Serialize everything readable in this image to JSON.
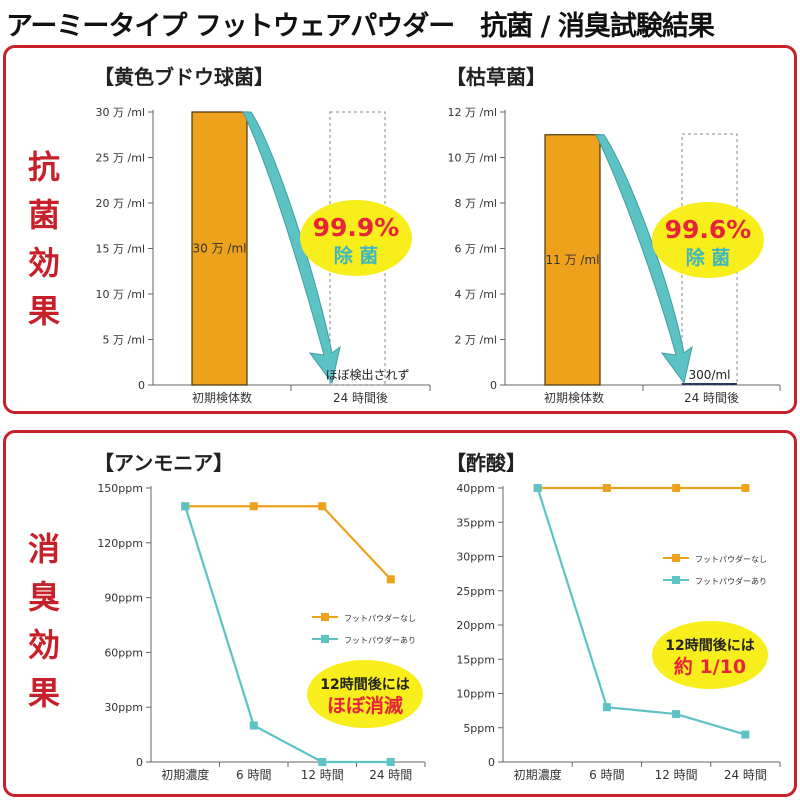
{
  "title": "アーミータイプ フットウェアパウダー　抗菌 / 消臭試験結果",
  "panels": {
    "antibacterial_side": [
      "抗",
      "菌",
      "効",
      "果"
    ],
    "deodorant_side": [
      "消",
      "臭",
      "効",
      "果"
    ]
  },
  "colors": {
    "orange": "#eea21c",
    "teal": "#5cc2c4",
    "red": "#c8202a",
    "callout_fill": "#f7ee1b",
    "callout_red": "#e8243a",
    "callout_teal": "#3fb7c0"
  },
  "chart_data": [
    {
      "type": "bar",
      "title": "【黄色ブドウ球菌】",
      "categories": [
        "初期検体数",
        "24 時間後"
      ],
      "values": [
        300000,
        0
      ],
      "ylim": [
        0,
        300000
      ],
      "yticks": [
        0,
        50000,
        100000,
        150000,
        200000,
        250000,
        300000
      ],
      "ytick_labels": [
        "0",
        "5 万 /ml",
        "10 万 /ml",
        "15 万 /ml",
        "20 万 /ml",
        "25 万 /ml",
        "30 万 /ml"
      ],
      "bar_labels": [
        "30 万 /ml",
        "ほぼ検出されず"
      ],
      "callout": {
        "percent": "99.9%",
        "text": "除 菌"
      }
    },
    {
      "type": "bar",
      "title": "【枯草菌】",
      "categories": [
        "初期検体数",
        "24 時間後"
      ],
      "values": [
        110000,
        300
      ],
      "ylim": [
        0,
        120000
      ],
      "yticks": [
        0,
        20000,
        40000,
        60000,
        80000,
        100000,
        120000
      ],
      "ytick_labels": [
        "0",
        "2 万 /ml",
        "4 万 /ml",
        "6 万 /ml",
        "8 万 /ml",
        "10 万 /ml",
        "12 万 /ml"
      ],
      "bar_labels": [
        "11 万 /ml",
        "300/ml"
      ],
      "callout": {
        "percent": "99.6%",
        "text": "除 菌"
      }
    },
    {
      "type": "line",
      "title": "【アンモニア】",
      "categories": [
        "初期濃度",
        "6 時間",
        "12 時間",
        "24 時間"
      ],
      "ylim": [
        0,
        150
      ],
      "yticks": [
        0,
        30,
        60,
        90,
        120,
        150
      ],
      "ytick_labels": [
        "0",
        "30ppm",
        "60ppm",
        "90ppm",
        "120ppm",
        "150ppm"
      ],
      "series": [
        {
          "name": "フットパウダーなし",
          "values": [
            140,
            140,
            140,
            100
          ]
        },
        {
          "name": "フットパウダーあり",
          "values": [
            140,
            20,
            0,
            0
          ]
        }
      ],
      "legend": "right",
      "callout": {
        "line1": "12時間後には",
        "line2": "ほぼ消滅"
      }
    },
    {
      "type": "line",
      "title": "【酢酸】",
      "categories": [
        "初期濃度",
        "6 時間",
        "12 時間",
        "24 時間"
      ],
      "ylim": [
        0,
        40
      ],
      "yticks": [
        0,
        5,
        10,
        15,
        20,
        25,
        30,
        35,
        40
      ],
      "ytick_labels": [
        "0",
        "5ppm",
        "10ppm",
        "15ppm",
        "20ppm",
        "25ppm",
        "30ppm",
        "35ppm",
        "40ppm"
      ],
      "series": [
        {
          "name": "フットパウダーなし",
          "values": [
            40,
            40,
            40,
            40
          ]
        },
        {
          "name": "フットパウダーあり",
          "values": [
            40,
            8,
            7,
            4
          ]
        }
      ],
      "legend": "right",
      "callout": {
        "line1": "12時間後には",
        "line2": "約 1/10"
      }
    }
  ]
}
